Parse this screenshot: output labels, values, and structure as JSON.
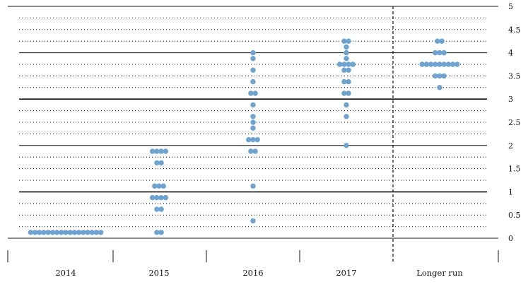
{
  "chart_data": {
    "type": "scatter",
    "style": "dot-plot",
    "categories": [
      "2014",
      "2015",
      "2016",
      "2017",
      "Longer run"
    ],
    "ylim": [
      0,
      5
    ],
    "yticks": [
      "0",
      "0.5",
      "1",
      "1.5",
      "2",
      "2.5",
      "3",
      "3.5",
      "4",
      "4.5",
      "5"
    ],
    "y_axis_side": "right",
    "grid": "dotted every 0.25, solid every 1",
    "separator_before": "Longer run",
    "dot_color": "#6fa3cf",
    "points": [
      {
        "category": "2014",
        "y": 0.125,
        "count": 17
      },
      {
        "category": "2015",
        "y": 0.125,
        "count": 2
      },
      {
        "category": "2015",
        "y": 0.625,
        "count": 2
      },
      {
        "category": "2015",
        "y": 0.875,
        "count": 4
      },
      {
        "category": "2015",
        "y": 1.125,
        "count": 3
      },
      {
        "category": "2015",
        "y": 1.625,
        "count": 2
      },
      {
        "category": "2015",
        "y": 1.875,
        "count": 4
      },
      {
        "category": "2016",
        "y": 0.375,
        "count": 1
      },
      {
        "category": "2016",
        "y": 1.125,
        "count": 1
      },
      {
        "category": "2016",
        "y": 1.875,
        "count": 2
      },
      {
        "category": "2016",
        "y": 2.125,
        "count": 3
      },
      {
        "category": "2016",
        "y": 2.375,
        "count": 1
      },
      {
        "category": "2016",
        "y": 2.5,
        "count": 1
      },
      {
        "category": "2016",
        "y": 2.625,
        "count": 1
      },
      {
        "category": "2016",
        "y": 2.875,
        "count": 1
      },
      {
        "category": "2016",
        "y": 3.125,
        "count": 2
      },
      {
        "category": "2016",
        "y": 3.375,
        "count": 1
      },
      {
        "category": "2016",
        "y": 3.625,
        "count": 1
      },
      {
        "category": "2016",
        "y": 3.875,
        "count": 1
      },
      {
        "category": "2016",
        "y": 4.0,
        "count": 1
      },
      {
        "category": "2017",
        "y": 2.0,
        "count": 1
      },
      {
        "category": "2017",
        "y": 2.625,
        "count": 1
      },
      {
        "category": "2017",
        "y": 2.875,
        "count": 1
      },
      {
        "category": "2017",
        "y": 3.125,
        "count": 2
      },
      {
        "category": "2017",
        "y": 3.375,
        "count": 2
      },
      {
        "category": "2017",
        "y": 3.625,
        "count": 2
      },
      {
        "category": "2017",
        "y": 3.75,
        "count": 4
      },
      {
        "category": "2017",
        "y": 3.875,
        "count": 1
      },
      {
        "category": "2017",
        "y": 4.0,
        "count": 1
      },
      {
        "category": "2017",
        "y": 4.125,
        "count": 1
      },
      {
        "category": "2017",
        "y": 4.25,
        "count": 2
      },
      {
        "category": "Longer run",
        "y": 3.25,
        "count": 1
      },
      {
        "category": "Longer run",
        "y": 3.5,
        "count": 3
      },
      {
        "category": "Longer run",
        "y": 3.75,
        "count": 9
      },
      {
        "category": "Longer run",
        "y": 4.0,
        "count": 3
      },
      {
        "category": "Longer run",
        "y": 4.25,
        "count": 2
      }
    ]
  }
}
